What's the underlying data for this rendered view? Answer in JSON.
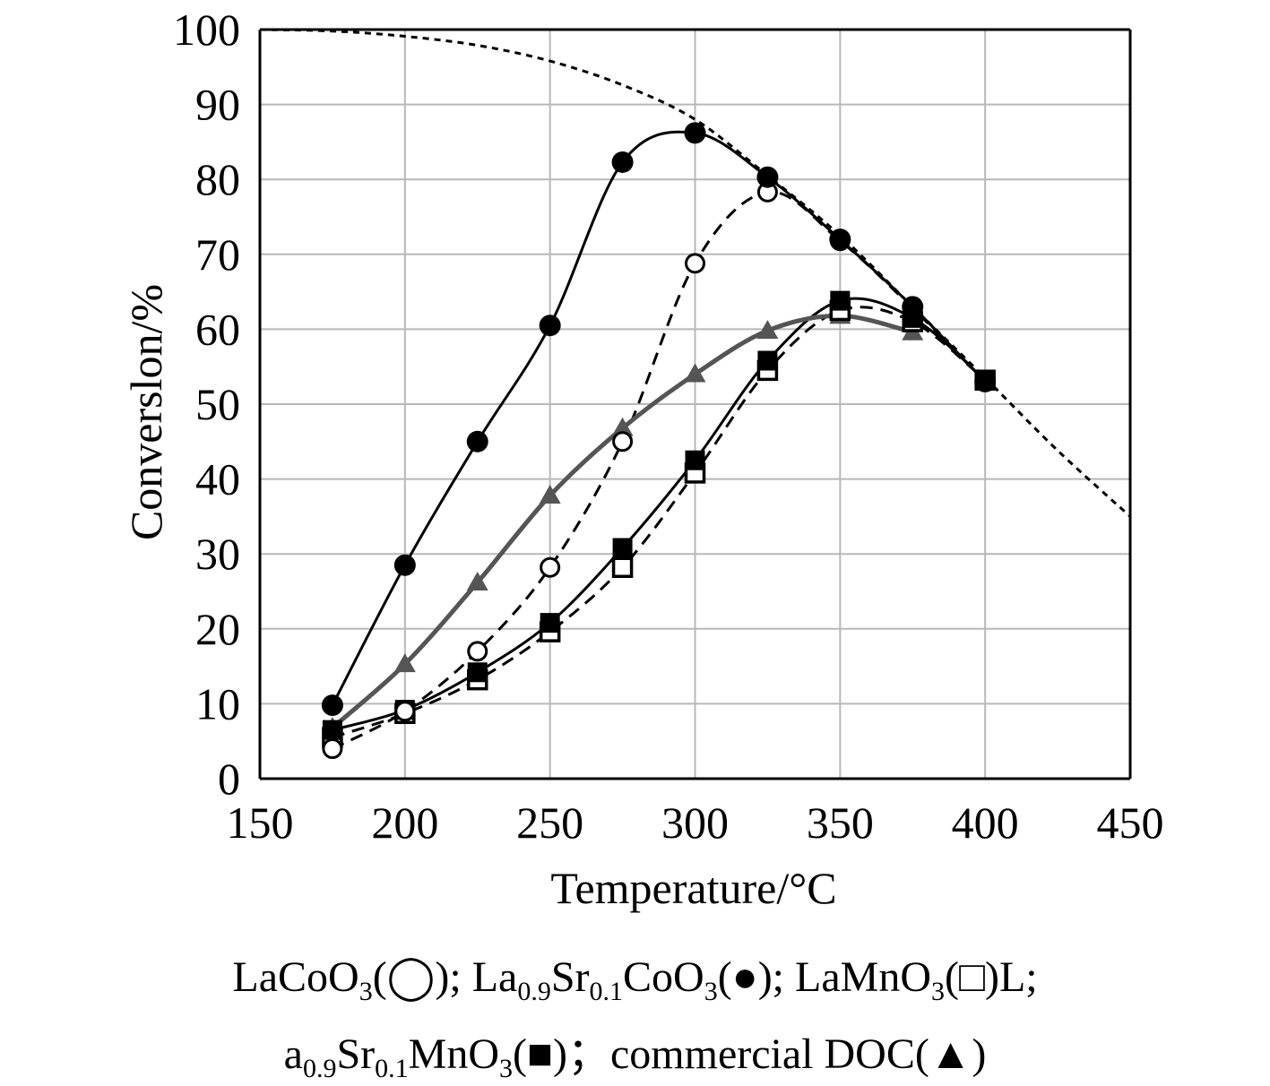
{
  "chart_data": {
    "type": "line",
    "xlabel": "Temperature/°C",
    "ylabel": "Converslon/%",
    "xlim": [
      150,
      450
    ],
    "ylim": [
      0,
      100
    ],
    "xticks": [
      150,
      200,
      250,
      300,
      350,
      400,
      450
    ],
    "yticks": [
      0,
      10,
      20,
      30,
      40,
      50,
      60,
      70,
      80,
      90,
      100
    ],
    "grid": true,
    "colors": {
      "black": "#000000",
      "gray": "#555555"
    },
    "series": [
      {
        "marker": "open-circle",
        "line": "dashed",
        "color": "#000000",
        "x": [
          175,
          200,
          225,
          250,
          275,
          300,
          325,
          350,
          375,
          400
        ],
        "y": [
          4,
          9,
          17,
          28.2,
          45,
          68.8,
          78.3,
          71.8,
          62.8,
          53
        ]
      },
      {
        "marker": "filled-circle",
        "line": "solid",
        "color": "#000000",
        "x": [
          175,
          200,
          225,
          250,
          275,
          300,
          325,
          350,
          375,
          400
        ],
        "y": [
          9.8,
          28.5,
          45,
          60.5,
          82.3,
          86.2,
          80.3,
          72,
          63,
          53
        ]
      },
      {
        "marker": "open-square",
        "line": "dashed",
        "color": "#000000",
        "x": [
          175,
          200,
          225,
          250,
          275,
          300,
          325,
          350,
          375,
          400
        ],
        "y": [
          5.5,
          8.7,
          13.2,
          19.6,
          28.2,
          40.8,
          54.5,
          62.5,
          61,
          53.2
        ]
      },
      {
        "marker": "filled-square",
        "line": "solid",
        "color": "#000000",
        "x": [
          175,
          200,
          225,
          250,
          275,
          300,
          325,
          350,
          375,
          400
        ],
        "y": [
          6.5,
          9.2,
          14.2,
          20.8,
          30.8,
          42.5,
          55.8,
          63.8,
          61.5,
          53.2
        ]
      },
      {
        "marker": "filled-triangle",
        "line": "solid",
        "color": "#555555",
        "x": [
          175,
          200,
          225,
          250,
          275,
          300,
          325,
          350,
          375
        ],
        "y": [
          6.8,
          15.3,
          26.2,
          37.8,
          46.8,
          54,
          59.8,
          61.8,
          59.6
        ]
      },
      {
        "marker": "none",
        "line": "dotted",
        "color": "#000000",
        "x": [
          150,
          175,
          200,
          225,
          250,
          275,
          300,
          325,
          350,
          375,
          400,
          425,
          450
        ],
        "y": [
          100,
          99.8,
          99.1,
          97.9,
          95.8,
          92.6,
          88,
          80.5,
          72.5,
          63,
          53.5,
          43.8,
          35
        ]
      }
    ]
  },
  "caption": {
    "line1": [
      {
        "t": "LaCoO"
      },
      {
        "t": "3",
        "sub": true
      },
      {
        "t": "(◯); La"
      },
      {
        "t": "0.9",
        "sub": true
      },
      {
        "t": "Sr"
      },
      {
        "t": "0.1",
        "sub": true
      },
      {
        "t": "CoO"
      },
      {
        "t": "3",
        "sub": true
      },
      {
        "t": "(●); LaMnO"
      },
      {
        "t": "3",
        "sub": true
      },
      {
        "t": "(□)L;"
      }
    ],
    "line2": [
      {
        "t": "a"
      },
      {
        "t": "0.9",
        "sub": true
      },
      {
        "t": "Sr"
      },
      {
        "t": "0.1",
        "sub": true
      },
      {
        "t": "MnO"
      },
      {
        "t": "3",
        "sub": true
      },
      {
        "t": "(■)；commercial DOC(▲)"
      }
    ]
  }
}
